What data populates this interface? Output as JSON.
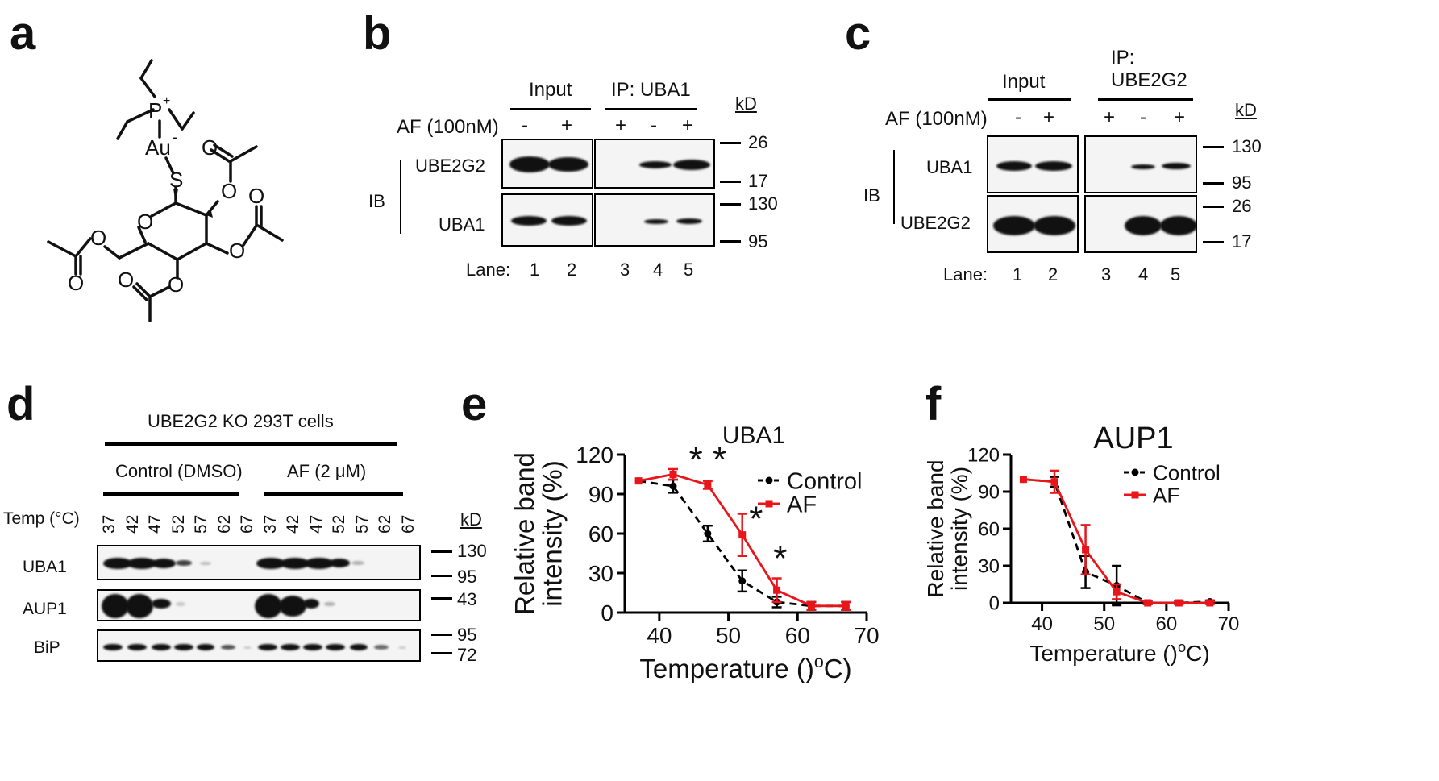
{
  "panels": {
    "a": "a",
    "b": "b",
    "c": "c",
    "d": "d",
    "e": "e",
    "f": "f"
  },
  "chem": {
    "p_plus": "P",
    "au": "Au",
    "s": "S",
    "o": "O",
    "plus": "+",
    "minus": "-"
  },
  "b": {
    "input": "Input",
    "ip": "IP: UBA1",
    "kd": "kD",
    "af": "AF (100nM)",
    "signs": [
      "-",
      "+",
      "+",
      "-",
      "+"
    ],
    "row1": "UBE2G2",
    "row2": "UBA1",
    "ib": "IB",
    "markers": [
      "26",
      "17",
      "130",
      "95"
    ],
    "lane": "Lane:",
    "lanes": [
      "1",
      "2",
      "3",
      "4",
      "5"
    ]
  },
  "c": {
    "input": "Input",
    "ip1": "IP:",
    "ip2": "UBE2G2",
    "kd": "kD",
    "af": "AF (100nM)",
    "signs": [
      "-",
      "+",
      "+",
      "-",
      "+"
    ],
    "row1": "UBA1",
    "row2": "UBE2G2",
    "ib": "IB",
    "markers": [
      "130",
      "95",
      "26",
      "17"
    ],
    "lane": "Lane:",
    "lanes": [
      "1",
      "2",
      "3",
      "4",
      "5"
    ]
  },
  "d": {
    "title": "UBE2G2 KO 293T cells",
    "ctrl": "Control (DMSO)",
    "af": "AF (2 μM)",
    "temp": "Temp (°C)",
    "kd": "kD",
    "temps": [
      "37",
      "42",
      "47",
      "52",
      "57",
      "62",
      "67",
      "37",
      "42",
      "47",
      "52",
      "57",
      "62",
      "67"
    ],
    "rows": [
      "UBA1",
      "AUP1",
      "BiP"
    ],
    "markers": [
      "130",
      "95",
      "43",
      "95",
      "72"
    ]
  },
  "chart_data": [
    {
      "type": "line",
      "title": "UBA1",
      "xlabel": "Temperature (°C)",
      "ylabel": "Relative band intensity (%)",
      "xlim": [
        35,
        70
      ],
      "ylim": [
        0,
        120
      ],
      "xticks": [
        40,
        50,
        60,
        70
      ],
      "yticks": [
        0,
        30,
        60,
        90,
        120
      ],
      "x": [
        37,
        42,
        47,
        52,
        57,
        62,
        67
      ],
      "series": [
        {
          "name": "Control",
          "color": "#000000",
          "dashed": true,
          "values": [
            100,
            96,
            60,
            24,
            8,
            5,
            5
          ],
          "errors": [
            0,
            5,
            6,
            8,
            4,
            3,
            3
          ]
        },
        {
          "name": "AF",
          "color": "#e8161b",
          "dashed": false,
          "values": [
            100,
            105,
            97,
            59,
            17,
            5,
            5
          ],
          "errors": [
            0,
            4,
            3,
            16,
            9,
            3,
            3
          ]
        }
      ],
      "annotations": [
        {
          "text": "* *",
          "x": 47,
          "y": 107
        },
        {
          "text": "*",
          "x": 54,
          "y": 62
        },
        {
          "text": "*",
          "x": 57.5,
          "y": 32
        }
      ]
    },
    {
      "type": "line",
      "title": "AUP1",
      "xlabel": "Temperature (°C)",
      "ylabel": "Relative band intensity (%)",
      "xlim": [
        35,
        70
      ],
      "ylim": [
        0,
        120
      ],
      "xticks": [
        40,
        50,
        60,
        70
      ],
      "yticks": [
        0,
        30,
        60,
        90,
        120
      ],
      "x": [
        37,
        42,
        47,
        52,
        57,
        62,
        67
      ],
      "series": [
        {
          "name": "Control",
          "color": "#000000",
          "dashed": true,
          "values": [
            100,
            98,
            25,
            14,
            0,
            0,
            1
          ],
          "errors": [
            0,
            4,
            13,
            16,
            1,
            1,
            1
          ]
        },
        {
          "name": "AF",
          "color": "#e8161b",
          "dashed": false,
          "values": [
            100,
            98,
            43,
            9,
            0,
            0,
            0
          ],
          "errors": [
            0,
            9,
            20,
            6,
            1,
            1,
            1
          ]
        }
      ]
    }
  ]
}
